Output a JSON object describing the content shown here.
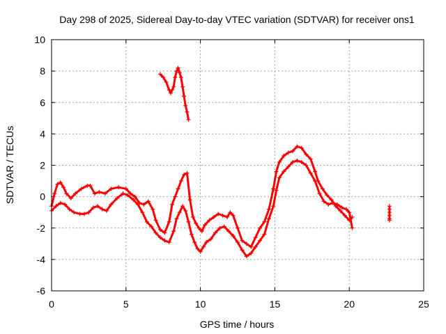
{
  "chart_data": {
    "type": "scatter",
    "title": "Day 298 of 2025, Sidereal Day-to-day VTEC variation (SDTVAR) for receiver ons1",
    "xlabel": "GPS time / hours",
    "ylabel": "SDTVAR / TECUs",
    "xlim": [
      0,
      25
    ],
    "ylim": [
      -6,
      10
    ],
    "xticks": [
      0,
      5,
      10,
      15,
      20,
      25
    ],
    "yticks": [
      -6,
      -4,
      -2,
      0,
      2,
      4,
      6,
      8,
      10
    ],
    "xtick_labels": [
      "0",
      "5",
      "10",
      "15",
      "20",
      "25"
    ],
    "ytick_labels": [
      "-6",
      "-4",
      "-2",
      "0",
      "2",
      "4",
      "6",
      "8",
      "10"
    ],
    "grid": true,
    "marker": "+",
    "series": [
      {
        "name": "main-upper",
        "color": "#ff0000",
        "points": [
          [
            0.0,
            -0.6
          ],
          [
            0.2,
            0.2
          ],
          [
            0.4,
            0.8
          ],
          [
            0.6,
            0.9
          ],
          [
            0.8,
            0.6
          ],
          [
            1.0,
            0.2
          ],
          [
            1.3,
            -0.1
          ],
          [
            1.6,
            0.2
          ],
          [
            2.0,
            0.5
          ],
          [
            2.4,
            0.7
          ],
          [
            2.6,
            0.7
          ],
          [
            2.9,
            0.2
          ],
          [
            3.2,
            0.3
          ],
          [
            3.6,
            0.2
          ],
          [
            4.0,
            0.5
          ],
          [
            4.5,
            0.6
          ],
          [
            5.0,
            0.5
          ],
          [
            5.3,
            0.2
          ],
          [
            5.6,
            0.0
          ],
          [
            5.9,
            -0.4
          ],
          [
            6.2,
            -0.5
          ],
          [
            6.5,
            -0.3
          ],
          [
            6.8,
            -0.8
          ],
          [
            7.0,
            -1.5
          ],
          [
            7.3,
            -2.1
          ],
          [
            7.6,
            -2.3
          ],
          [
            7.9,
            -1.6
          ],
          [
            8.1,
            -0.5
          ],
          [
            8.3,
            0.0
          ],
          [
            8.5,
            0.5
          ],
          [
            8.7,
            1.0
          ],
          [
            8.9,
            1.4
          ],
          [
            9.1,
            1.5
          ],
          [
            9.3,
            -0.2
          ],
          [
            9.5,
            -1.3
          ],
          [
            9.7,
            -1.7
          ],
          [
            9.9,
            -2.0
          ],
          [
            10.1,
            -2.2
          ],
          [
            10.3,
            -1.8
          ],
          [
            10.6,
            -1.5
          ],
          [
            10.9,
            -1.3
          ],
          [
            11.2,
            -1.1
          ],
          [
            11.5,
            -1.2
          ],
          [
            11.8,
            -1.3
          ],
          [
            12.0,
            -1.0
          ],
          [
            12.2,
            -1.2
          ],
          [
            12.5,
            -2.0
          ],
          [
            12.8,
            -2.8
          ],
          [
            13.1,
            -3.0
          ],
          [
            13.4,
            -3.2
          ],
          [
            13.7,
            -2.6
          ],
          [
            14.0,
            -2.0
          ],
          [
            14.3,
            -1.6
          ],
          [
            14.6,
            -0.8
          ],
          [
            14.9,
            0.5
          ],
          [
            15.1,
            1.6
          ],
          [
            15.3,
            2.2
          ],
          [
            15.6,
            2.6
          ],
          [
            15.9,
            2.8
          ],
          [
            16.2,
            2.9
          ],
          [
            16.5,
            3.2
          ],
          [
            16.8,
            3.1
          ],
          [
            17.1,
            2.7
          ],
          [
            17.4,
            2.4
          ],
          [
            17.7,
            1.6
          ],
          [
            17.9,
            1.0
          ],
          [
            18.2,
            0.5
          ],
          [
            18.5,
            0.1
          ],
          [
            18.8,
            -0.2
          ],
          [
            19.1,
            -0.6
          ],
          [
            19.4,
            -0.9
          ],
          [
            19.7,
            -1.2
          ],
          [
            20.0,
            -1.5
          ],
          [
            20.2,
            -1.3
          ]
        ]
      },
      {
        "name": "main-lower",
        "color": "#ff0000",
        "points": [
          [
            0.0,
            -0.9
          ],
          [
            0.3,
            -0.6
          ],
          [
            0.6,
            -0.4
          ],
          [
            0.9,
            -0.5
          ],
          [
            1.2,
            -0.8
          ],
          [
            1.5,
            -1.0
          ],
          [
            1.9,
            -1.1
          ],
          [
            2.2,
            -1.1
          ],
          [
            2.5,
            -1.0
          ],
          [
            2.8,
            -0.7
          ],
          [
            3.1,
            -0.6
          ],
          [
            3.4,
            -0.8
          ],
          [
            3.7,
            -0.9
          ],
          [
            4.0,
            -0.5
          ],
          [
            4.4,
            -0.1
          ],
          [
            4.8,
            0.2
          ],
          [
            5.1,
            0.1
          ],
          [
            5.5,
            -0.2
          ],
          [
            5.8,
            -0.5
          ],
          [
            6.1,
            -1.0
          ],
          [
            6.4,
            -1.6
          ],
          [
            6.7,
            -1.9
          ],
          [
            7.0,
            -2.3
          ],
          [
            7.3,
            -2.6
          ],
          [
            7.6,
            -2.8
          ],
          [
            7.9,
            -2.9
          ],
          [
            8.2,
            -2.2
          ],
          [
            8.4,
            -1.4
          ],
          [
            8.6,
            -1.0
          ],
          [
            8.8,
            -0.6
          ],
          [
            9.0,
            -0.9
          ],
          [
            9.2,
            -1.6
          ],
          [
            9.4,
            -2.4
          ],
          [
            9.6,
            -2.9
          ],
          [
            9.8,
            -3.3
          ],
          [
            10.0,
            -3.5
          ],
          [
            10.2,
            -3.2
          ],
          [
            10.4,
            -2.9
          ],
          [
            10.7,
            -2.7
          ],
          [
            11.0,
            -2.3
          ],
          [
            11.3,
            -2.0
          ],
          [
            11.6,
            -1.9
          ],
          [
            11.9,
            -2.2
          ],
          [
            12.2,
            -2.5
          ],
          [
            12.5,
            -2.9
          ],
          [
            12.8,
            -3.4
          ],
          [
            13.1,
            -3.8
          ],
          [
            13.4,
            -3.6
          ],
          [
            13.7,
            -3.2
          ],
          [
            14.0,
            -2.8
          ],
          [
            14.3,
            -2.4
          ],
          [
            14.6,
            -1.4
          ],
          [
            14.9,
            -0.6
          ],
          [
            15.1,
            0.4
          ],
          [
            15.3,
            1.2
          ],
          [
            15.6,
            1.6
          ],
          [
            15.9,
            1.9
          ],
          [
            16.2,
            2.2
          ],
          [
            16.5,
            2.3
          ],
          [
            16.8,
            2.2
          ],
          [
            17.1,
            2.0
          ],
          [
            17.4,
            1.5
          ],
          [
            17.7,
            1.0
          ],
          [
            18.0,
            0.2
          ],
          [
            18.3,
            -0.3
          ],
          [
            18.6,
            -0.5
          ],
          [
            18.9,
            -0.4
          ],
          [
            19.2,
            -0.5
          ],
          [
            19.5,
            -0.7
          ],
          [
            19.8,
            -0.8
          ],
          [
            20.0,
            -1.0
          ],
          [
            20.2,
            -2.0
          ]
        ]
      },
      {
        "name": "upper-segment",
        "color": "#ff0000",
        "points": [
          [
            7.3,
            7.8
          ],
          [
            7.5,
            7.6
          ],
          [
            7.7,
            7.3
          ],
          [
            7.9,
            6.8
          ],
          [
            8.0,
            6.6
          ],
          [
            8.1,
            6.8
          ],
          [
            8.2,
            7.0
          ],
          [
            8.3,
            7.6
          ],
          [
            8.4,
            8.0
          ],
          [
            8.5,
            8.2
          ],
          [
            8.6,
            7.9
          ],
          [
            8.7,
            7.6
          ],
          [
            8.8,
            7.0
          ],
          [
            8.9,
            6.4
          ],
          [
            9.0,
            5.8
          ],
          [
            9.1,
            5.4
          ],
          [
            9.2,
            4.9
          ]
        ]
      },
      {
        "name": "isolated-22.7h",
        "color": "#ff0000",
        "points": [
          [
            22.7,
            -0.6
          ],
          [
            22.7,
            -0.8
          ],
          [
            22.7,
            -1.0
          ],
          [
            22.7,
            -1.2
          ],
          [
            22.7,
            -1.4
          ],
          [
            22.7,
            -1.5
          ]
        ]
      }
    ]
  }
}
